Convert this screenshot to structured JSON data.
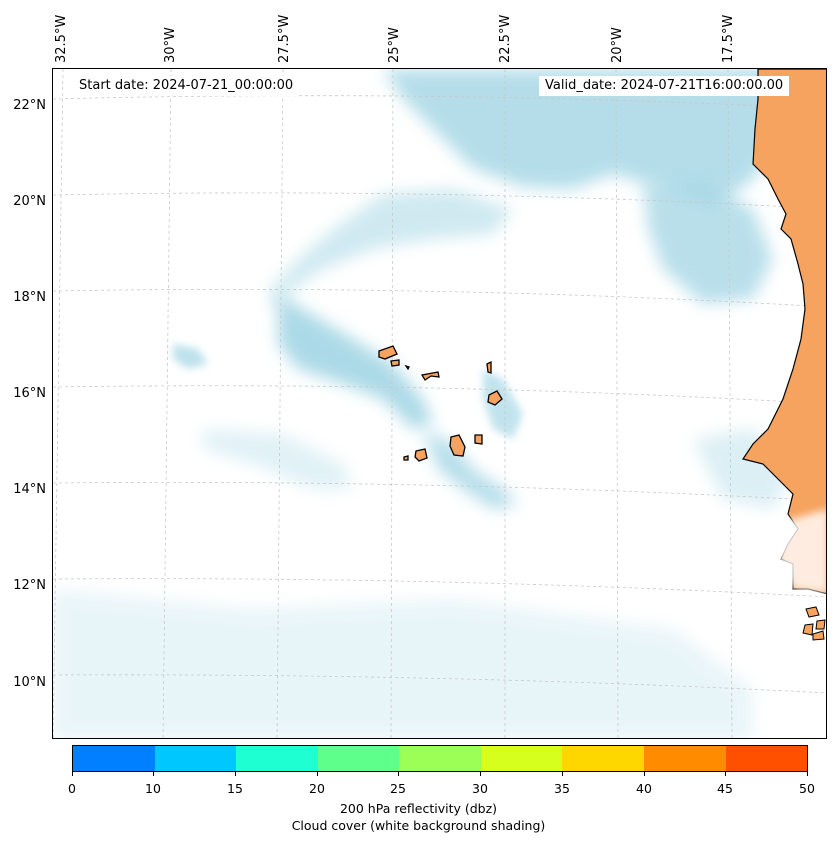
{
  "header": {
    "start_date": "Start date: 2024-07-21_00:00:00",
    "valid_date": "Valid_date: 2024-07-21T16:00:00.00"
  },
  "axes": {
    "lon_labels": [
      "32.5°W",
      "30°W",
      "27.5°W",
      "25°W",
      "22.5°W",
      "20°W",
      "17.5°W"
    ],
    "lat_labels": [
      "22°N",
      "20°N",
      "18°N",
      "16°N",
      "14°N",
      "12°N",
      "10°N"
    ]
  },
  "map": {
    "region": "Cape Verde Islands and West African coast",
    "land_color": "#f5a35f",
    "cloud_color": "#a8d8e6",
    "coast_color": "#000000"
  },
  "colorbar": {
    "title": "200 hPa reflectivity (dbz)",
    "subtitle": "Cloud cover (white background shading)",
    "ticks": [
      "0",
      "10",
      "15",
      "20",
      "25",
      "30",
      "35",
      "40",
      "45",
      "50"
    ],
    "colors": [
      "#0080ff",
      "#00c8ff",
      "#1effd2",
      "#5fff8c",
      "#9bff55",
      "#d7ff1e",
      "#ffd700",
      "#ff8c00",
      "#ff5000"
    ]
  }
}
